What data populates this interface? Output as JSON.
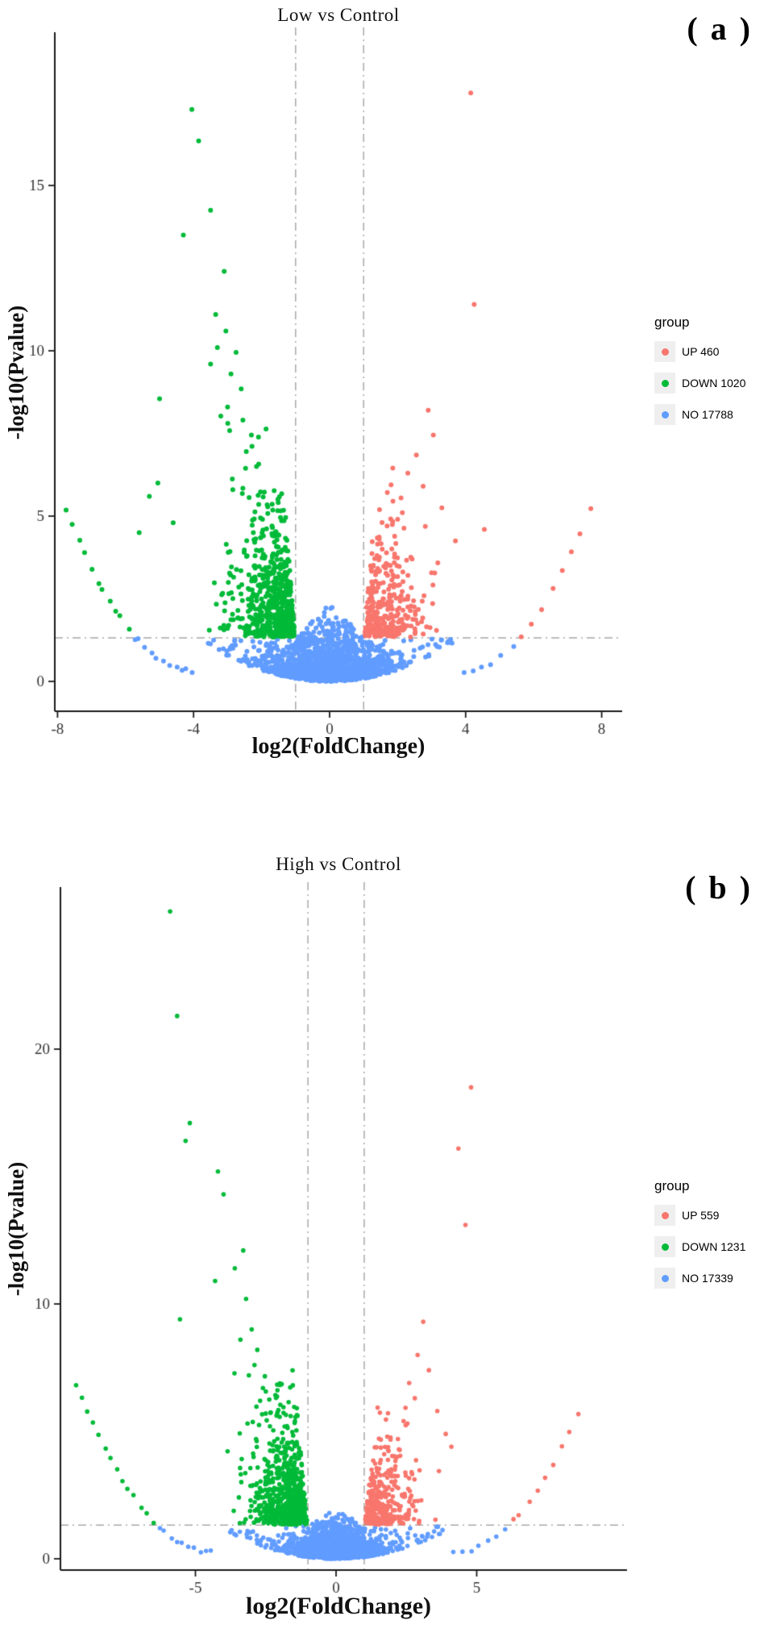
{
  "chart_data": [
    {
      "type": "scatter",
      "variant": "volcano",
      "title": "Low vs Control",
      "panel_label": "( a )",
      "xlabel": "log2(FoldChange)",
      "ylabel": "-log10(Pvalue)",
      "legend_title": "group",
      "legend_position": "right",
      "grid": false,
      "xlim": [
        -8.1,
        8.6
      ],
      "ylim": [
        -0.9,
        19.6
      ],
      "xticks": [
        -8,
        -4,
        0,
        4,
        8
      ],
      "yticks": [
        0,
        5,
        10,
        15
      ],
      "threshold_x": [
        -1,
        1
      ],
      "threshold_y": 1.32,
      "threshold_line_color": "#a8a8a8",
      "series": [
        {
          "name": "UP 460",
          "group": "up",
          "color": "#F8766D",
          "count": 460
        },
        {
          "name": "DOWN 1020",
          "group": "down",
          "color": "#00BA38",
          "count": 1020
        },
        {
          "name": "NO 17788",
          "group": "no",
          "color": "#619CFF",
          "count": 17788
        }
      ],
      "distribution": {
        "seed": 101,
        "no_center": {
          "n": 1500,
          "x_sd": 0.9,
          "x_clip": 3.6,
          "env_a": 0.085,
          "y_exp": 0.32,
          "y_exp_mid": 0.6,
          "cap_mid_base": 2.35,
          "cap_mid_slope": 1.0,
          "cap_out": 1.28
        },
        "down_wedge": {
          "n": 620,
          "x_off": 1.02,
          "x_sd": 0.78,
          "x_clip": 3.9,
          "y_exp": 1.25,
          "y_cap": 8.2,
          "tilt": 0.07
        },
        "up_wedge": {
          "n": 300,
          "x_off": 1.02,
          "x_sd": 0.75,
          "x_clip": 3.8,
          "y_exp": 1.1,
          "y_cap": 6.8,
          "tilt": 0.07
        },
        "wing_left": {
          "n": 22,
          "x_start": 4.0,
          "x_end": 7.7,
          "curve_a": 0.35,
          "curve_b": 0.3
        },
        "wing_right": {
          "n": 14,
          "x_start": 3.9,
          "x_end": 7.7,
          "curve_a": 0.35,
          "curve_b": 0.3
        },
        "down_outliers": [
          [
            -4.05,
            17.3
          ],
          [
            -3.85,
            16.35
          ],
          [
            -3.5,
            14.25
          ],
          [
            -4.3,
            13.5
          ],
          [
            -3.1,
            12.4
          ],
          [
            -3.35,
            11.1
          ],
          [
            -3.05,
            10.6
          ],
          [
            -3.3,
            10.1
          ],
          [
            -2.75,
            9.95
          ],
          [
            -3.5,
            9.6
          ],
          [
            -2.9,
            9.3
          ],
          [
            -5.0,
            8.55
          ],
          [
            -2.6,
            8.85
          ],
          [
            -3.0,
            8.3
          ],
          [
            -2.55,
            7.9
          ],
          [
            -2.3,
            7.45
          ],
          [
            -2.45,
            6.95
          ],
          [
            -5.05,
            6.0
          ],
          [
            -5.3,
            5.6
          ],
          [
            -4.6,
            4.8
          ],
          [
            -5.6,
            4.5
          ],
          [
            -2.15,
            6.5
          ]
        ],
        "up_outliers": [
          [
            4.15,
            17.8
          ],
          [
            4.25,
            11.4
          ],
          [
            2.9,
            8.2
          ],
          [
            3.05,
            7.45
          ],
          [
            2.55,
            6.85
          ],
          [
            2.3,
            6.3
          ],
          [
            2.75,
            5.9
          ],
          [
            3.3,
            5.25
          ],
          [
            2.1,
            5.55
          ],
          [
            4.55,
            4.6
          ],
          [
            3.7,
            4.25
          ],
          [
            2.0,
            4.9
          ]
        ]
      }
    },
    {
      "type": "scatter",
      "variant": "volcano",
      "title": "High vs Control",
      "panel_label": "( b )",
      "xlabel": "log2(FoldChange)",
      "ylabel": "-log10(Pvalue)",
      "legend_title": "group",
      "legend_position": "right",
      "grid": false,
      "xlim": [
        -9.8,
        10.3
      ],
      "ylim": [
        -0.6,
        26.4
      ],
      "xticks": [
        -5,
        0,
        5
      ],
      "yticks": [
        0,
        10,
        20
      ],
      "threshold_x": [
        -1,
        1
      ],
      "threshold_y": 1.32,
      "threshold_line_color": "#a8a8a8",
      "series": [
        {
          "name": "UP 559",
          "group": "up",
          "color": "#F8766D",
          "count": 559
        },
        {
          "name": "DOWN 1231",
          "group": "down",
          "color": "#00BA38",
          "count": 1231
        },
        {
          "name": "NO 17339",
          "group": "no",
          "color": "#619CFF",
          "count": 17339
        }
      ],
      "distribution": {
        "seed": 202,
        "no_center": {
          "n": 1500,
          "x_sd": 0.85,
          "x_clip": 3.8,
          "env_a": 0.07,
          "y_exp": 0.3,
          "y_exp_mid": 0.5,
          "cap_mid_base": 1.95,
          "cap_mid_slope": 0.65,
          "cap_out": 1.28
        },
        "down_wedge": {
          "n": 700,
          "x_off": 1.02,
          "x_sd": 0.85,
          "x_clip": 4.5,
          "y_exp": 1.3,
          "y_cap": 7.5,
          "tilt": 0.08
        },
        "up_wedge": {
          "n": 330,
          "x_off": 1.02,
          "x_sd": 0.8,
          "x_clip": 4.2,
          "y_exp": 1.15,
          "y_cap": 6.0,
          "tilt": 0.08
        },
        "wing_left": {
          "n": 24,
          "x_start": 4.4,
          "x_end": 9.3,
          "curve_a": 0.28,
          "curve_b": 0.25
        },
        "wing_right": {
          "n": 16,
          "x_start": 4.2,
          "x_end": 8.6,
          "curve_a": 0.28,
          "curve_b": 0.25
        },
        "down_outliers": [
          [
            -5.9,
            25.4
          ],
          [
            -5.65,
            21.3
          ],
          [
            -5.2,
            17.1
          ],
          [
            -5.35,
            16.4
          ],
          [
            -4.2,
            15.2
          ],
          [
            -4.0,
            14.3
          ],
          [
            -3.3,
            12.1
          ],
          [
            -3.6,
            11.4
          ],
          [
            -4.3,
            10.9
          ],
          [
            -3.2,
            10.2
          ],
          [
            -5.55,
            9.4
          ],
          [
            -3.0,
            9.0
          ],
          [
            -3.4,
            8.6
          ],
          [
            -2.8,
            8.2
          ],
          [
            -2.9,
            7.6
          ],
          [
            -3.1,
            7.2
          ],
          [
            -2.6,
            6.7
          ],
          [
            -2.7,
            6.2
          ],
          [
            -2.5,
            5.7
          ],
          [
            -2.35,
            5.2
          ]
        ],
        "up_outliers": [
          [
            4.8,
            18.5
          ],
          [
            4.35,
            16.1
          ],
          [
            4.6,
            13.1
          ],
          [
            3.1,
            9.3
          ],
          [
            2.9,
            8.0
          ],
          [
            3.3,
            7.4
          ],
          [
            2.6,
            6.9
          ],
          [
            2.8,
            6.3
          ],
          [
            3.6,
            5.8
          ],
          [
            2.4,
            5.4
          ],
          [
            3.9,
            4.9
          ],
          [
            2.2,
            4.7
          ],
          [
            4.1,
            4.4
          ]
        ]
      }
    }
  ]
}
